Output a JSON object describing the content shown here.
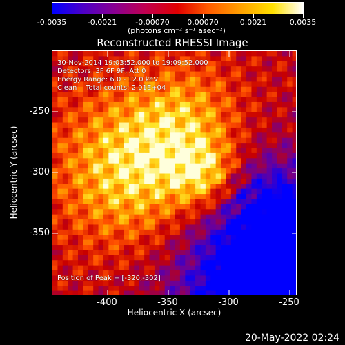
{
  "colorbar": {
    "tick_labels": [
      "-0.0035",
      "-0.0021",
      "-0.00070",
      "0.00070",
      "0.0021",
      "0.0035"
    ],
    "units_label": "(photons cm⁻² s⁻¹ asec⁻²)",
    "colors": [
      "#0000ff",
      "#8a0090",
      "#e00000",
      "#ff9f00",
      "#ffffff"
    ]
  },
  "plot": {
    "title": "Reconstructed RHESSI Image",
    "annotations": [
      "30-Nov-2014 19:03:52.000 to 19:09:52.000",
      "Detectors: 3F 6F 9F, Att 0",
      "Energy Range: 6.0 - 12.0 keV",
      "Clean    Total counts: 2.01E+04"
    ],
    "peak_label": "Position of Peak = [-320,-302]",
    "xlabel": "Heliocentric X (arcsec)",
    "ylabel": "Heliocentric Y (arcsec)",
    "x_ticks": [
      "-400",
      "-350",
      "-300",
      "-250"
    ],
    "y_ticks": [
      "-250",
      "-300",
      "-350"
    ]
  },
  "footer": {
    "timestamp": "20-May-2022 02:24"
  }
}
